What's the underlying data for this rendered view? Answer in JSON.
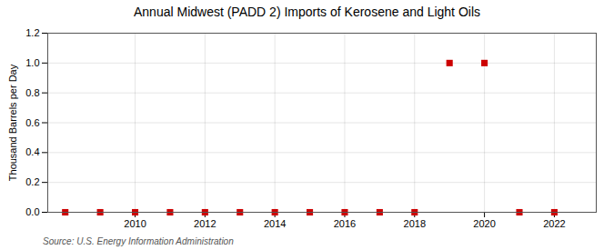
{
  "chart_data": {
    "type": "scatter",
    "title": "Annual Midwest (PADD 2) Imports of Kerosene and Light Oils",
    "ylabel": "Thousand Barrels per Day",
    "source": "Source: U.S. Energy Information Administration",
    "x": [
      2008,
      2009,
      2010,
      2011,
      2012,
      2013,
      2014,
      2015,
      2016,
      2017,
      2018,
      2019,
      2020,
      2021,
      2022
    ],
    "values": [
      0.0,
      0.0,
      0.0,
      0.0,
      0.0,
      0.0,
      0.0,
      0.0,
      0.0,
      0.0,
      0.0,
      1.0,
      1.0,
      0.0,
      0.0
    ],
    "color": "#CC0000",
    "marker": "square",
    "xlim": [
      2007.5,
      2023.2
    ],
    "xticks": [
      2010,
      2012,
      2014,
      2016,
      2018,
      2020,
      2022
    ],
    "ylim": [
      0.0,
      1.2
    ],
    "yticks": [
      {
        "value": 0.0,
        "label": "0.0"
      },
      0.2,
      0.4,
      0.6,
      0.8,
      {
        "value": 1.0,
        "label": "1.0"
      },
      1.2
    ],
    "grid": true
  }
}
